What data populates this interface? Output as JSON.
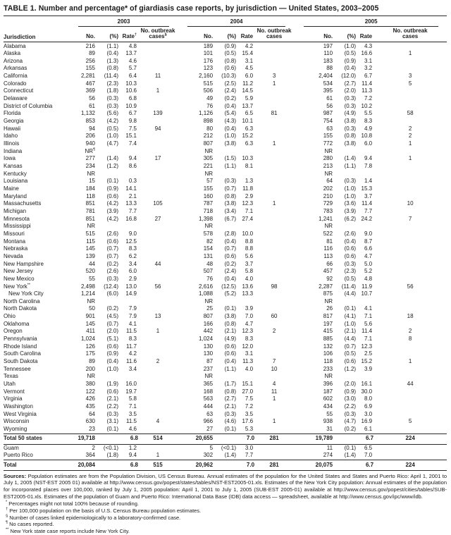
{
  "title": "TABLE 1. Number and percentage* of giardiasis case reports, by jurisdiction — United States, 2003–2005",
  "table": {
    "jurisdiction_header": "Jurisdiction",
    "year_groups": [
      {
        "year": "2003",
        "columns": [
          "No.",
          "(%)",
          "Rate^{†}",
          "No. outbreak cases^{§}"
        ]
      },
      {
        "year": "2004",
        "columns": [
          "No.",
          "(%)",
          "Rate",
          "No. outbreak cases"
        ]
      },
      {
        "year": "2005",
        "columns": [
          "No.",
          "(%)",
          "Rate",
          "No. outbreak cases"
        ]
      }
    ],
    "rows": [
      {
        "jurisdiction": "Alabama",
        "values": [
          "216",
          "(1.1)",
          "4.8",
          "",
          "189",
          "(0.9)",
          "4.2",
          "",
          "197",
          "(1.0)",
          "4.3",
          ""
        ]
      },
      {
        "jurisdiction": "Alaska",
        "values": [
          "89",
          "(0.4)",
          "13.7",
          "",
          "101",
          "(0.5)",
          "15.4",
          "",
          "110",
          "(0.5)",
          "16.6",
          "1"
        ]
      },
      {
        "jurisdiction": "Arizona",
        "values": [
          "256",
          "(1.3)",
          "4.6",
          "",
          "176",
          "(0.8)",
          "3.1",
          "",
          "183",
          "(0.9)",
          "3.1",
          ""
        ]
      },
      {
        "jurisdiction": "Arkansas",
        "values": [
          "155",
          "(0.8)",
          "5.7",
          "",
          "123",
          "(0.6)",
          "4.5",
          "",
          "88",
          "(0.4)",
          "3.2",
          ""
        ]
      },
      {
        "jurisdiction": "California",
        "values": [
          "2,281",
          "(11.4)",
          "6.4",
          "11",
          "2,160",
          "(10.3)",
          "6.0",
          "3",
          "2,404",
          "(12.0)",
          "6.7",
          "3"
        ]
      },
      {
        "jurisdiction": "Colorado",
        "values": [
          "467",
          "(2.3)",
          "10.3",
          "",
          "515",
          "(2.5)",
          "11.2",
          "1",
          "534",
          "(2.7)",
          "11.4",
          "5"
        ]
      },
      {
        "jurisdiction": "Connecticut",
        "values": [
          "369",
          "(1.8)",
          "10.6",
          "1",
          "506",
          "(2.4)",
          "14.5",
          "",
          "395",
          "(2.0)",
          "11.3",
          ""
        ]
      },
      {
        "jurisdiction": "Delaware",
        "values": [
          "56",
          "(0.3)",
          "6.8",
          "",
          "49",
          "(0.2)",
          "5.9",
          "",
          "61",
          "(0.3)",
          "7.2",
          ""
        ]
      },
      {
        "jurisdiction": "District of Columbia",
        "values": [
          "61",
          "(0.3)",
          "10.9",
          "",
          "76",
          "(0.4)",
          "13.7",
          "",
          "56",
          "(0.3)",
          "10.2",
          ""
        ]
      },
      {
        "jurisdiction": "Florida",
        "values": [
          "1,132",
          "(5.6)",
          "6.7",
          "139",
          "1,126",
          "(5.4)",
          "6.5",
          "81",
          "987",
          "(4.9)",
          "5.5",
          "58"
        ]
      },
      {
        "jurisdiction": "Georgia",
        "values": [
          "853",
          "(4.2)",
          "9.8",
          "",
          "898",
          "(4.3)",
          "10.1",
          "",
          "754",
          "(3.8)",
          "8.3",
          ""
        ]
      },
      {
        "jurisdiction": "Hawaii",
        "values": [
          "94",
          "(0.5)",
          "7.5",
          "94",
          "80",
          "(0.4)",
          "6.3",
          "",
          "63",
          "(0.3)",
          "4.9",
          "2"
        ]
      },
      {
        "jurisdiction": "Idaho",
        "values": [
          "206",
          "(1.0)",
          "15.1",
          "",
          "212",
          "(1.0)",
          "15.2",
          "",
          "155",
          "(0.8)",
          "10.8",
          "2"
        ]
      },
      {
        "jurisdiction": "Illinois",
        "values": [
          "940",
          "(4.7)",
          "7.4",
          "",
          "807",
          "(3.8)",
          "6.3",
          "1",
          "772",
          "(3.8)",
          "6.0",
          "1"
        ]
      },
      {
        "jurisdiction": "Indiana",
        "values": [
          "NR^{¶}",
          "",
          "",
          "",
          "NR",
          "",
          "",
          "",
          "NR",
          "",
          "",
          ""
        ]
      },
      {
        "jurisdiction": "Iowa",
        "values": [
          "277",
          "(1.4)",
          "9.4",
          "17",
          "305",
          "(1.5)",
          "10.3",
          "",
          "280",
          "(1.4)",
          "9.4",
          "1"
        ]
      },
      {
        "jurisdiction": "Kansas",
        "values": [
          "234",
          "(1.2)",
          "8.6",
          "",
          "221",
          "(1.1)",
          "8.1",
          "",
          "213",
          "(1.1)",
          "7.8",
          ""
        ]
      },
      {
        "jurisdiction": "Kentucky",
        "values": [
          "NR",
          "",
          "",
          "",
          "NR",
          "",
          "",
          "",
          "NR",
          "",
          "",
          ""
        ]
      },
      {
        "jurisdiction": "Louisiana",
        "values": [
          "15",
          "(0.1)",
          "0.3",
          "",
          "57",
          "(0.3)",
          "1.3",
          "",
          "64",
          "(0.3)",
          "1.4",
          ""
        ]
      },
      {
        "jurisdiction": "Maine",
        "values": [
          "184",
          "(0.9)",
          "14.1",
          "",
          "155",
          "(0.7)",
          "11.8",
          "",
          "202",
          "(1.0)",
          "15.3",
          ""
        ]
      },
      {
        "jurisdiction": "Maryland",
        "values": [
          "118",
          "(0.6)",
          "2.1",
          "",
          "160",
          "(0.8)",
          "2.9",
          "",
          "210",
          "(1.0)",
          "3.7",
          ""
        ]
      },
      {
        "jurisdiction": "Massachusetts",
        "values": [
          "851",
          "(4.2)",
          "13.3",
          "105",
          "787",
          "(3.8)",
          "12.3",
          "1",
          "729",
          "(3.6)",
          "11.4",
          "10"
        ]
      },
      {
        "jurisdiction": "Michigan",
        "values": [
          "781",
          "(3.9)",
          "7.7",
          "",
          "718",
          "(3.4)",
          "7.1",
          "",
          "783",
          "(3.9)",
          "7.7",
          ""
        ]
      },
      {
        "jurisdiction": "Minnesota",
        "values": [
          "851",
          "(4.2)",
          "16.8",
          "27",
          "1,398",
          "(6.7)",
          "27.4",
          "",
          "1,241",
          "(6.2)",
          "24.2",
          "7"
        ]
      },
      {
        "jurisdiction": "Mississippi",
        "values": [
          "NR",
          "",
          "",
          "",
          "NR",
          "",
          "",
          "",
          "NR",
          "",
          "",
          ""
        ]
      },
      {
        "jurisdiction": "Missouri",
        "values": [
          "515",
          "(2.6)",
          "9.0",
          "",
          "578",
          "(2.8)",
          "10.0",
          "",
          "522",
          "(2.6)",
          "9.0",
          ""
        ]
      },
      {
        "jurisdiction": "Montana",
        "values": [
          "115",
          "(0.6)",
          "12.5",
          "",
          "82",
          "(0.4)",
          "8.8",
          "",
          "81",
          "(0.4)",
          "8.7",
          ""
        ]
      },
      {
        "jurisdiction": "Nebraska",
        "values": [
          "145",
          "(0.7)",
          "8.3",
          "",
          "154",
          "(0.7)",
          "8.8",
          "",
          "116",
          "(0.6)",
          "6.6",
          ""
        ]
      },
      {
        "jurisdiction": "Nevada",
        "values": [
          "139",
          "(0.7)",
          "6.2",
          "",
          "131",
          "(0.6)",
          "5.6",
          "",
          "113",
          "(0.6)",
          "4.7",
          ""
        ]
      },
      {
        "jurisdiction": "New Hampshire",
        "values": [
          "44",
          "(0.2)",
          "3.4",
          "44",
          "48",
          "(0.2)",
          "3.7",
          "",
          "66",
          "(0.3)",
          "5.0",
          ""
        ]
      },
      {
        "jurisdiction": "New Jersey",
        "values": [
          "520",
          "(2.6)",
          "6.0",
          "",
          "507",
          "(2.4)",
          "5.8",
          "",
          "457",
          "(2.3)",
          "5.2",
          ""
        ]
      },
      {
        "jurisdiction": "New Mexico",
        "values": [
          "55",
          "(0.3)",
          "2.9",
          "",
          "76",
          "(0.4)",
          "4.0",
          "",
          "92",
          "(0.5)",
          "4.8",
          ""
        ]
      },
      {
        "jurisdiction": "New York^{**}",
        "values": [
          "2,498",
          "(12.4)",
          "13.0",
          "56",
          "2,616",
          "(12.5)",
          "13.6",
          "98",
          "2,287",
          "(11.4)",
          "11.9",
          "56"
        ]
      },
      {
        "jurisdiction": "New York City",
        "indent": true,
        "values": [
          "1,214",
          "(6.0)",
          "14.9",
          "",
          "1,088",
          "(5.2)",
          "13.3",
          "",
          "875",
          "(4.4)",
          "10.7",
          ""
        ]
      },
      {
        "jurisdiction": "North Carolina",
        "values": [
          "NR",
          "",
          "",
          "",
          "NR",
          "",
          "",
          "",
          "NR",
          "",
          "",
          ""
        ]
      },
      {
        "jurisdiction": "North Dakota",
        "values": [
          "50",
          "(0.2)",
          "7.9",
          "",
          "25",
          "(0.1)",
          "3.9",
          "",
          "26",
          "(0.1)",
          "4.1",
          ""
        ]
      },
      {
        "jurisdiction": "Ohio",
        "values": [
          "901",
          "(4.5)",
          "7.9",
          "13",
          "807",
          "(3.8)",
          "7.0",
          "60",
          "817",
          "(4.1)",
          "7.1",
          "18"
        ]
      },
      {
        "jurisdiction": "Oklahoma",
        "values": [
          "145",
          "(0.7)",
          "4.1",
          "",
          "166",
          "(0.8)",
          "4.7",
          "",
          "197",
          "(1.0)",
          "5.6",
          ""
        ]
      },
      {
        "jurisdiction": "Oregon",
        "values": [
          "411",
          "(2.0)",
          "11.5",
          "1",
          "442",
          "(2.1)",
          "12.3",
          "2",
          "415",
          "(2.1)",
          "11.4",
          "2"
        ]
      },
      {
        "jurisdiction": "Pennsylvania",
        "values": [
          "1,024",
          "(5.1)",
          "8.3",
          "",
          "1,024",
          "(4.9)",
          "8.3",
          "",
          "885",
          "(4.4)",
          "7.1",
          "8"
        ]
      },
      {
        "jurisdiction": "Rhode Island",
        "values": [
          "126",
          "(0.6)",
          "11.7",
          "",
          "130",
          "(0.6)",
          "12.0",
          "",
          "132",
          "(0.7)",
          "12.3",
          ""
        ]
      },
      {
        "jurisdiction": "South Carolina",
        "values": [
          "175",
          "(0.9)",
          "4.2",
          "",
          "130",
          "(0.6)",
          "3.1",
          "",
          "106",
          "(0.5)",
          "2.5",
          ""
        ]
      },
      {
        "jurisdiction": "South Dakota",
        "values": [
          "89",
          "(0.4)",
          "11.6",
          "2",
          "87",
          "(0.4)",
          "11.3",
          "7",
          "118",
          "(0.6)",
          "15.2",
          "1"
        ]
      },
      {
        "jurisdiction": "Tennessee",
        "values": [
          "200",
          "(1.0)",
          "3.4",
          "",
          "237",
          "(1.1)",
          "4.0",
          "10",
          "233",
          "(1.2)",
          "3.9",
          ""
        ]
      },
      {
        "jurisdiction": "Texas",
        "values": [
          "NR",
          "",
          "",
          "",
          "NR",
          "",
          "",
          "",
          "NR",
          "",
          "",
          ""
        ]
      },
      {
        "jurisdiction": "Utah",
        "values": [
          "380",
          "(1.9)",
          "16.0",
          "",
          "365",
          "(1.7)",
          "15.1",
          "4",
          "396",
          "(2.0)",
          "16.1",
          "44"
        ]
      },
      {
        "jurisdiction": "Vermont",
        "values": [
          "122",
          "(0.6)",
          "19.7",
          "",
          "168",
          "(0.8)",
          "27.0",
          "11",
          "187",
          "(0.9)",
          "30.0",
          ""
        ]
      },
      {
        "jurisdiction": "Virginia",
        "values": [
          "426",
          "(2.1)",
          "5.8",
          "",
          "563",
          "(2.7)",
          "7.5",
          "1",
          "602",
          "(3.0)",
          "8.0",
          ""
        ]
      },
      {
        "jurisdiction": "Washington",
        "values": [
          "435",
          "(2.2)",
          "7.1",
          "",
          "444",
          "(2.1)",
          "7.2",
          "",
          "434",
          "(2.2)",
          "6.9",
          ""
        ]
      },
      {
        "jurisdiction": "West Virginia",
        "values": [
          "64",
          "(0.3)",
          "3.5",
          "",
          "63",
          "(0.3)",
          "3.5",
          "",
          "55",
          "(0.3)",
          "3.0",
          ""
        ]
      },
      {
        "jurisdiction": "Wisconsin",
        "values": [
          "630",
          "(3.1)",
          "11.5",
          "4",
          "966",
          "(4.6)",
          "17.6",
          "1",
          "938",
          "(4.7)",
          "16.9",
          "5"
        ]
      },
      {
        "jurisdiction": "Wyoming",
        "values": [
          "23",
          "(0.1)",
          "4.6",
          "",
          "27",
          "(0.1)",
          "5.3",
          "",
          "31",
          "(0.2)",
          "6.1",
          ""
        ]
      },
      {
        "jurisdiction": "Total 50 states",
        "bold": true,
        "values": [
          "19,718",
          "",
          "6.8",
          "514",
          "20,655",
          "",
          "7.0",
          "281",
          "19,789",
          "",
          "6.7",
          "224"
        ]
      },
      {
        "jurisdiction": "Guam",
        "values": [
          "2",
          "(<0.1)",
          "1.2",
          "",
          "5",
          "(<0.1)",
          "3.0",
          "",
          "11",
          "(0.1)",
          "6.5",
          ""
        ]
      },
      {
        "jurisdiction": "Puerto Rico",
        "values": [
          "364",
          "(1.8)",
          "9.4",
          "1",
          "302",
          "(1.4)",
          "7.7",
          "",
          "274",
          "(1.4)",
          "7.0",
          ""
        ]
      },
      {
        "jurisdiction": "Total",
        "bold": true,
        "grand": true,
        "values": [
          "20,084",
          "",
          "6.8",
          "515",
          "20,962",
          "",
          "7.0",
          "281",
          "20,075",
          "",
          "6.7",
          "224"
        ]
      }
    ]
  },
  "footnotes": {
    "sources_label": "Sources:",
    "sources_text": " Population estimates are from the Population Division, US Census Bureau. Annual estimates of the population for the United States and States and Puerto Rico: April 1, 2001 to July 1, 2005 (NST-EST 2005 01) available at http://www.census.gov/popest/states/tables/NST-EST2005-01.xls. Estimates of the New York City population: Annual estimates of the population for incorporated places over 100,000, ranked by July 1, 2005 population: April 1, 2001 to July 1, 2005 (SUB-EST 2005-01) available at http://www.census.gov/popest/cities/tables/SUB-EST2005-01.xls. Estimates of the population of Guam and Puerto Rico: International Data Base (IDB) data access — spreadsheet, available at http://www.census.gov/ipc/www/idb.",
    "notes": [
      {
        "marker": "*",
        "text": "Percentages might not total 100% because of rounding."
      },
      {
        "marker": "†",
        "text": "Per 100,000 population on the basis of U.S. Census Bureau population estimates."
      },
      {
        "marker": "§",
        "text": "Number of cases linked epidemiologically to a laboratory-confirmed case."
      },
      {
        "marker": "¶",
        "text": "No cases reported."
      },
      {
        "marker": "**",
        "text": "New York state case reports include New York City."
      }
    ]
  }
}
